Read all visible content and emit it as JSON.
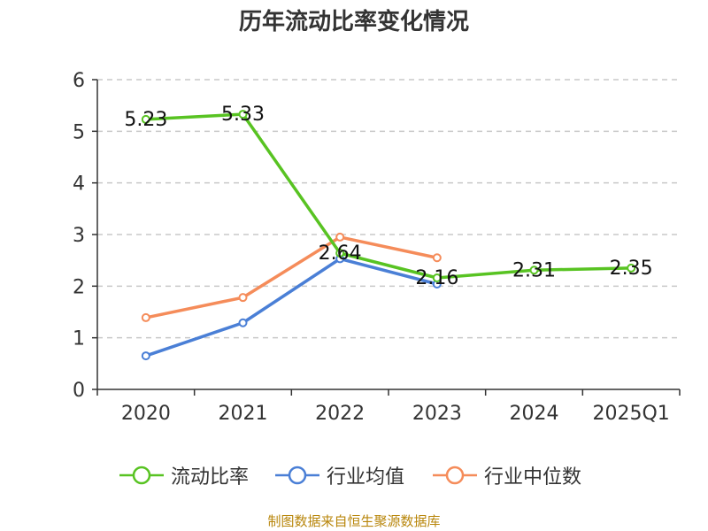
{
  "title": "历年流动比率变化情况",
  "source_note": "制图数据来自恒生聚源数据库",
  "colors": {
    "grid": "#c8c8c8",
    "axis": "#333333",
    "text": "#333333"
  },
  "legend": {
    "items": [
      {
        "label": "流动比率",
        "color": "#58c322"
      },
      {
        "label": "行业均值",
        "color": "#4a7fd6"
      },
      {
        "label": "行业中位数",
        "color": "#f58c5a"
      }
    ]
  },
  "chart_data": {
    "type": "line",
    "title": "历年流动比率变化情况",
    "xlabel": "",
    "ylabel": "",
    "categories": [
      "2020",
      "2021",
      "2022",
      "2023",
      "2024",
      "2025Q1"
    ],
    "ylim": [
      0,
      6
    ],
    "yticks": [
      0,
      1,
      2,
      3,
      4,
      5,
      6
    ],
    "grid": true,
    "legend_position": "bottom",
    "series": [
      {
        "name": "流动比率",
        "color": "#58c322",
        "values": [
          5.23,
          5.33,
          2.64,
          2.16,
          2.31,
          2.35
        ],
        "labels": [
          "5.23",
          "5.33",
          "2.64",
          "2.16",
          "2.31",
          "2.35"
        ]
      },
      {
        "name": "行业均值",
        "color": "#4a7fd6",
        "values": [
          0.65,
          1.29,
          2.53,
          2.04,
          null,
          null
        ],
        "labels": null
      },
      {
        "name": "行业中位数",
        "color": "#f58c5a",
        "values": [
          1.39,
          1.78,
          2.95,
          2.55,
          null,
          null
        ],
        "labels": null
      }
    ]
  }
}
